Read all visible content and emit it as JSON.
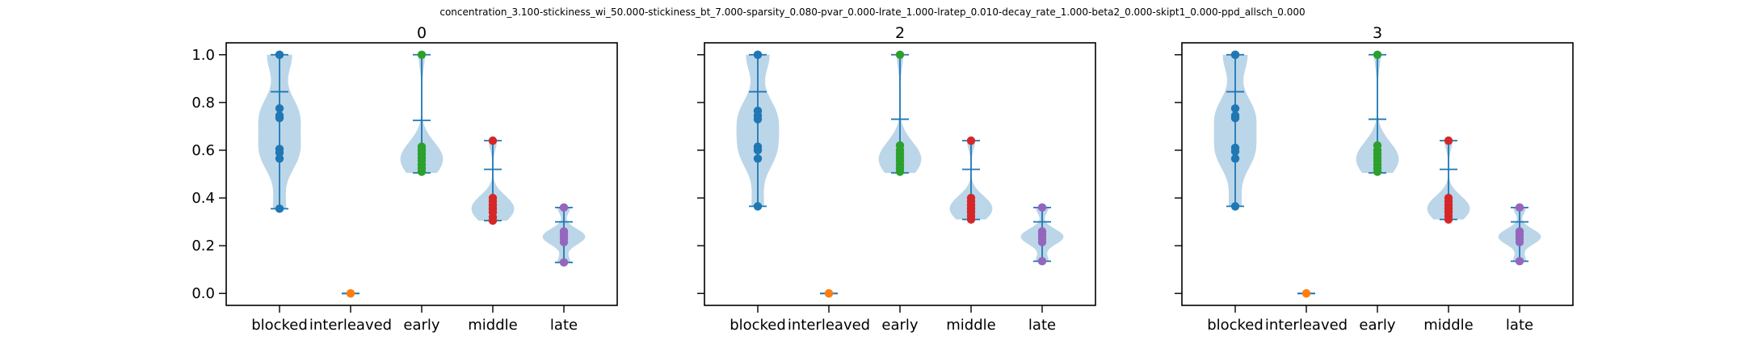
{
  "figure": {
    "suptitle": "concentration_3.100-stickiness_wi_50.000-stickiness_bt_7.000-sparsity_0.080-pvar_0.000-lrate_1.000-lratep_0.010-decay_rate_1.000-beta2_0.000-skipt1_0.000-ppd_allsch_0.000"
  },
  "chart_data": [
    {
      "type": "violin",
      "title": "0",
      "categories": [
        "blocked",
        "interleaved",
        "early",
        "middle",
        "late"
      ],
      "ylim": [
        -0.05,
        1.05
      ],
      "yticks": [
        0.0,
        0.2,
        0.4,
        0.6,
        0.8,
        1.0
      ],
      "ytick_labels": [
        "0.0",
        "0.2",
        "0.4",
        "0.6",
        "0.8",
        "1.0"
      ],
      "show_ytick_labels": true,
      "colors": [
        "#1f77b4",
        "#ff7f0e",
        "#2ca02c",
        "#d62728",
        "#9467bd"
      ],
      "series": [
        {
          "category": "blocked",
          "min": 0.355,
          "max": 1.0,
          "mean": 0.845,
          "points": [
            1.0,
            1.0,
            0.775,
            0.745,
            0.735,
            0.605,
            0.59,
            0.565,
            0.355
          ]
        },
        {
          "category": "interleaved",
          "min": 0.0,
          "max": 0.0,
          "mean": 0.0,
          "points": [
            0.0,
            0.0
          ]
        },
        {
          "category": "early",
          "min": 0.505,
          "max": 1.0,
          "mean": 0.725,
          "points": [
            1.0,
            0.615,
            0.6,
            0.585,
            0.57,
            0.555,
            0.54,
            0.525,
            0.51
          ]
        },
        {
          "category": "middle",
          "min": 0.305,
          "max": 0.64,
          "mean": 0.52,
          "points": [
            0.64,
            0.4,
            0.385,
            0.37,
            0.355,
            0.34,
            0.32,
            0.305
          ]
        },
        {
          "category": "late",
          "min": 0.13,
          "max": 0.36,
          "mean": 0.3,
          "points": [
            0.36,
            0.26,
            0.245,
            0.23,
            0.215,
            0.13
          ]
        }
      ]
    },
    {
      "type": "violin",
      "title": "2",
      "categories": [
        "blocked",
        "interleaved",
        "early",
        "middle",
        "late"
      ],
      "ylim": [
        -0.05,
        1.05
      ],
      "yticks": [
        0.0,
        0.2,
        0.4,
        0.6,
        0.8,
        1.0
      ],
      "ytick_labels": [
        "0.0",
        "0.2",
        "0.4",
        "0.6",
        "0.8",
        "1.0"
      ],
      "show_ytick_labels": false,
      "colors": [
        "#1f77b4",
        "#ff7f0e",
        "#2ca02c",
        "#d62728",
        "#9467bd"
      ],
      "series": [
        {
          "category": "blocked",
          "min": 0.365,
          "max": 1.0,
          "mean": 0.845,
          "points": [
            1.0,
            1.0,
            0.765,
            0.745,
            0.73,
            0.615,
            0.6,
            0.565,
            0.365
          ]
        },
        {
          "category": "interleaved",
          "min": 0.0,
          "max": 0.0,
          "mean": 0.0,
          "points": [
            0.0,
            0.0
          ]
        },
        {
          "category": "early",
          "min": 0.505,
          "max": 1.0,
          "mean": 0.73,
          "points": [
            1.0,
            0.62,
            0.6,
            0.585,
            0.57,
            0.555,
            0.54,
            0.525,
            0.51
          ]
        },
        {
          "category": "middle",
          "min": 0.31,
          "max": 0.64,
          "mean": 0.52,
          "points": [
            0.64,
            0.4,
            0.385,
            0.37,
            0.355,
            0.34,
            0.325,
            0.31
          ]
        },
        {
          "category": "late",
          "min": 0.135,
          "max": 0.36,
          "mean": 0.3,
          "points": [
            0.36,
            0.26,
            0.245,
            0.23,
            0.215,
            0.135
          ]
        }
      ]
    },
    {
      "type": "violin",
      "title": "3",
      "categories": [
        "blocked",
        "interleaved",
        "early",
        "middle",
        "late"
      ],
      "ylim": [
        -0.05,
        1.05
      ],
      "yticks": [
        0.0,
        0.2,
        0.4,
        0.6,
        0.8,
        1.0
      ],
      "ytick_labels": [
        "0.0",
        "0.2",
        "0.4",
        "0.6",
        "0.8",
        "1.0"
      ],
      "show_ytick_labels": false,
      "colors": [
        "#1f77b4",
        "#ff7f0e",
        "#2ca02c",
        "#d62728",
        "#9467bd"
      ],
      "series": [
        {
          "category": "blocked",
          "min": 0.365,
          "max": 1.0,
          "mean": 0.845,
          "points": [
            1.0,
            1.0,
            0.775,
            0.745,
            0.735,
            0.61,
            0.595,
            0.565,
            0.365
          ]
        },
        {
          "category": "interleaved",
          "min": 0.0,
          "max": 0.0,
          "mean": 0.0,
          "points": [
            0.0,
            0.0
          ]
        },
        {
          "category": "early",
          "min": 0.505,
          "max": 1.0,
          "mean": 0.73,
          "points": [
            1.0,
            0.62,
            0.6,
            0.585,
            0.57,
            0.555,
            0.54,
            0.525,
            0.51
          ]
        },
        {
          "category": "middle",
          "min": 0.31,
          "max": 0.64,
          "mean": 0.52,
          "points": [
            0.64,
            0.4,
            0.385,
            0.37,
            0.355,
            0.34,
            0.325,
            0.31
          ]
        },
        {
          "category": "late",
          "min": 0.135,
          "max": 0.36,
          "mean": 0.3,
          "points": [
            0.36,
            0.26,
            0.245,
            0.23,
            0.215,
            0.135
          ]
        }
      ]
    }
  ]
}
